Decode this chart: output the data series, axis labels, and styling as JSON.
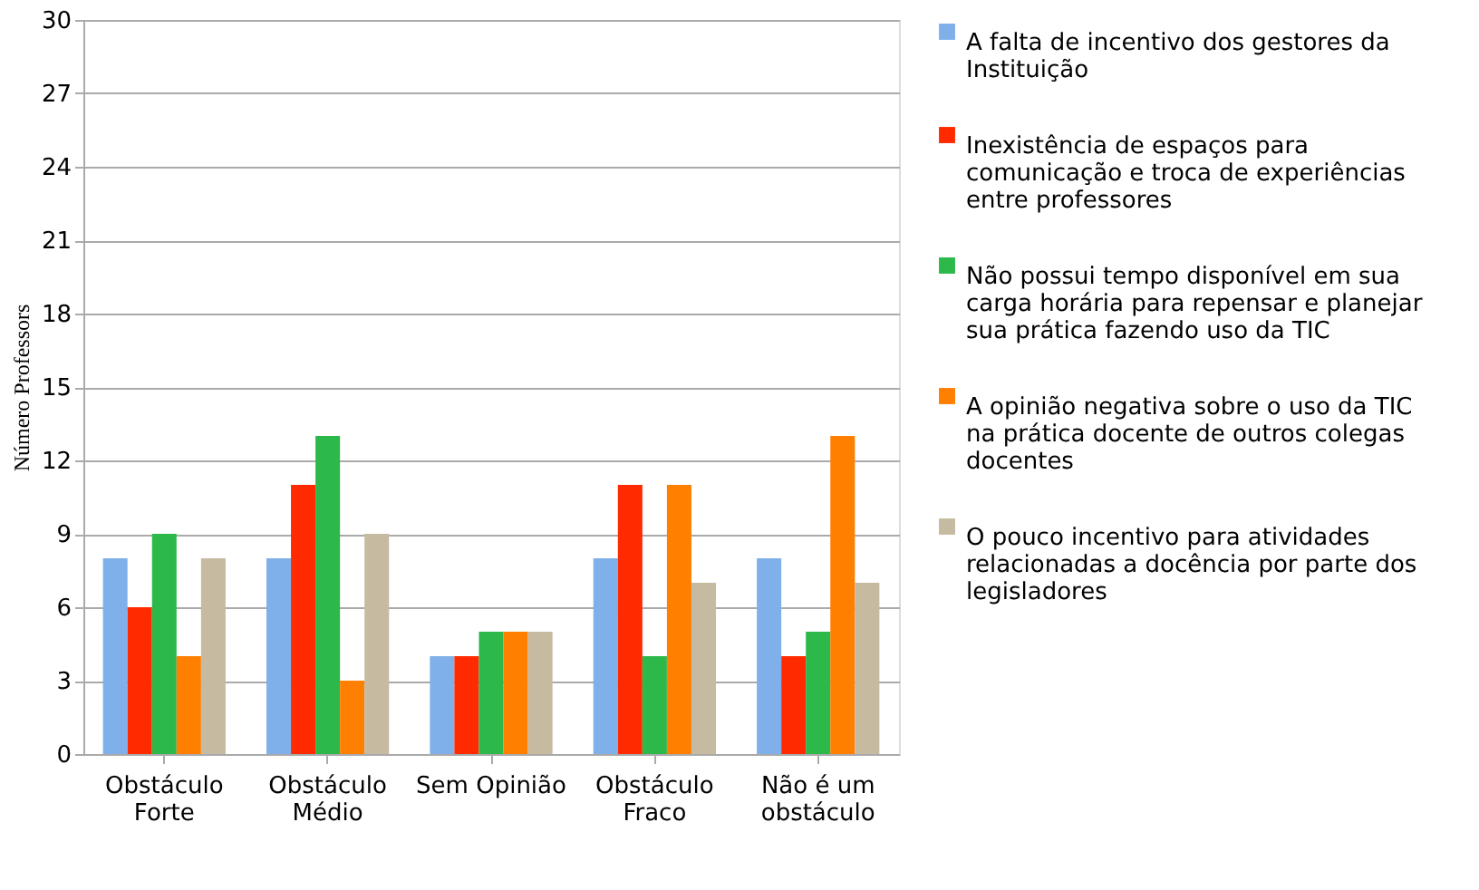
{
  "chart_data": {
    "type": "bar",
    "ylabel": "Número Professors",
    "categories": [
      "Obstáculo Forte",
      "Obstáculo Médio",
      "Sem Opinião",
      "Obstáculo Fraco",
      "Não é um obstáculo"
    ],
    "series": [
      {
        "name": "A falta de incentivo dos gestores da Instituição",
        "color": "#7fb0ea",
        "values": [
          8,
          8,
          4,
          8,
          8
        ]
      },
      {
        "name": "Inexistência  de espaços para comunicação e troca de experiências entre professores",
        "color": "#ff2a00",
        "values": [
          6,
          11,
          4,
          11,
          4
        ]
      },
      {
        "name": "Não possui tempo disponível em sua carga horária para repensar e planejar sua prática fazendo uso da TIC",
        "color": "#2db84a",
        "values": [
          9,
          13,
          5,
          4,
          5
        ]
      },
      {
        "name": "A opinião negativa sobre o uso da TIC na prática docente de outros colegas docentes",
        "color": "#ff7f00",
        "values": [
          4,
          3,
          5,
          11,
          13
        ]
      },
      {
        "name": "O pouco incentivo para atividades relacionadas a docência por parte dos legisladores",
        "color": "#c6baa0",
        "values": [
          8,
          9,
          5,
          7,
          7
        ]
      }
    ],
    "ylim": [
      0,
      30
    ],
    "yticks": [
      0,
      3,
      6,
      9,
      12,
      15,
      18,
      21,
      24,
      27,
      30
    ],
    "grid": "y",
    "legend": "right"
  }
}
